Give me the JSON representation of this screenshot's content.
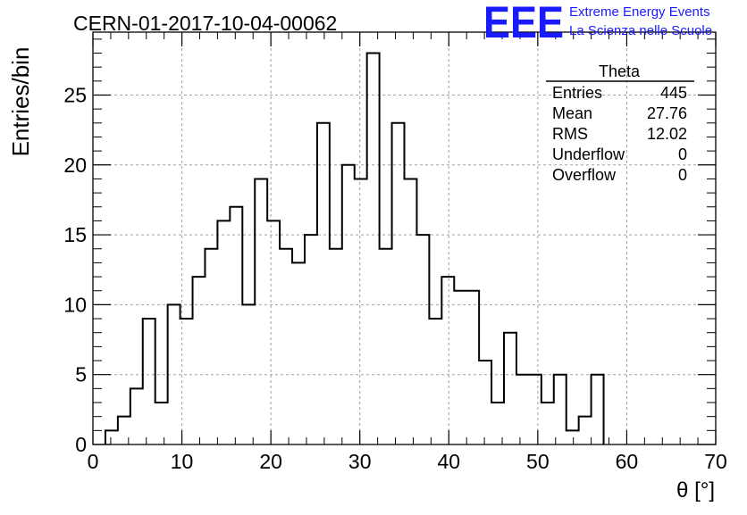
{
  "chart_data": {
    "type": "histogram",
    "title": "CERN-01-2017-10-04-00062",
    "xlabel": "θ [°]",
    "ylabel": "Entries/bin",
    "xlim": [
      0,
      70
    ],
    "ylim": [
      0,
      29.5
    ],
    "grid": true,
    "bin_width": 1.4,
    "bin_edges_start": 1.4,
    "counts": [
      1,
      2,
      4,
      9,
      3,
      10,
      9,
      12,
      14,
      16,
      17,
      10,
      19,
      16,
      14,
      13,
      15,
      23,
      14,
      20,
      19,
      28,
      14,
      23,
      19,
      15,
      9,
      12,
      11,
      11,
      6,
      3,
      8,
      5,
      5,
      3,
      5,
      1,
      2,
      5
    ],
    "x_ticks": [
      "0",
      "10",
      "20",
      "30",
      "40",
      "50",
      "60",
      "70"
    ],
    "y_ticks": [
      "0",
      "5",
      "10",
      "15",
      "20",
      "25"
    ],
    "stats": {
      "title": "Theta",
      "rows": [
        {
          "label": "Entries",
          "value": "445"
        },
        {
          "label": "Mean",
          "value": "27.76"
        },
        {
          "label": "RMS",
          "value": "12.02"
        },
        {
          "label": "Underflow",
          "value": "0"
        },
        {
          "label": "Overflow",
          "value": "0"
        }
      ]
    }
  },
  "logo": {
    "mark": "EEE",
    "line1": "Extreme Energy Events",
    "line2": "La Scienza nelle Scuole",
    "color": "#1a1aff"
  }
}
